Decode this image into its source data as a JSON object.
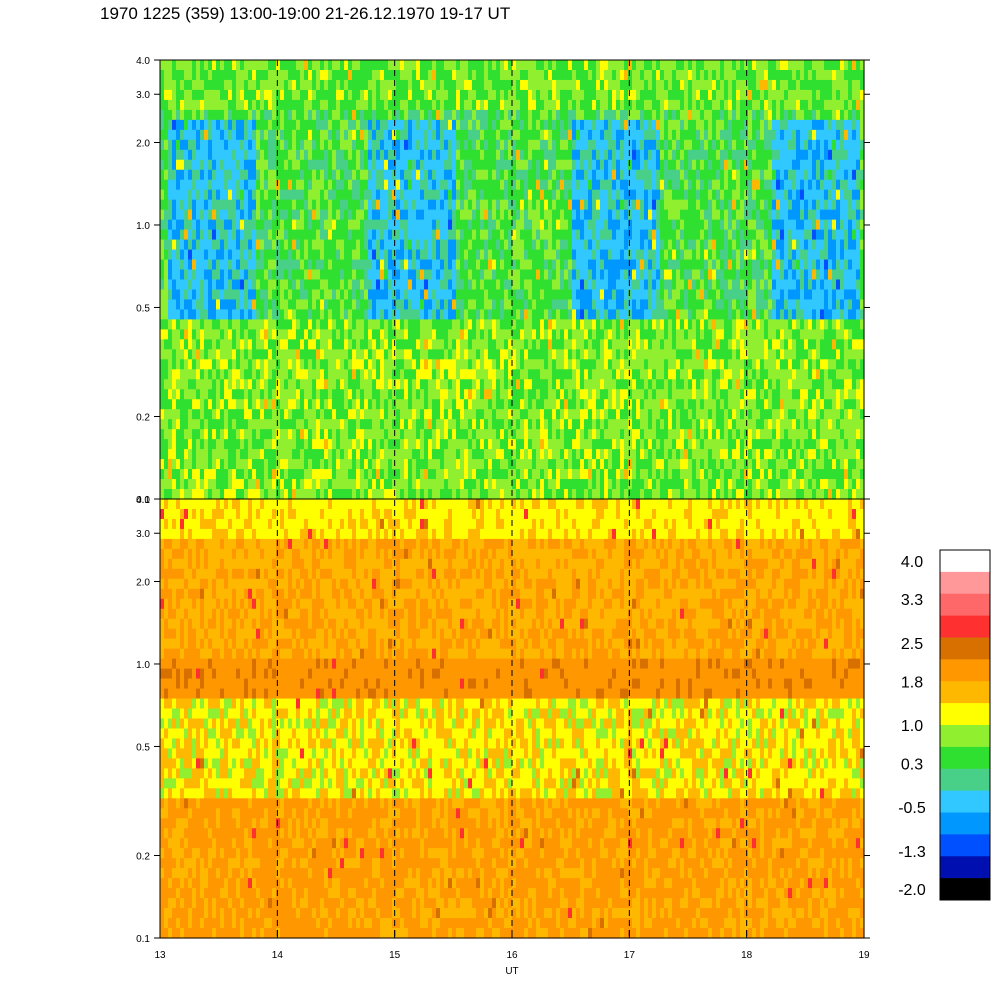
{
  "title": "1970 1225 (359) 13:00-19:00 21-26.12.1970  19-17 UT",
  "colors": {
    "palette": [
      "#000000",
      "#0010b0",
      "#0050ff",
      "#0098ff",
      "#30c8ff",
      "#48d088",
      "#30e030",
      "#90f030",
      "#ffff00",
      "#ffb800",
      "#ff9800",
      "#d87000",
      "#ff3030",
      "#ff6868",
      "#ff9898",
      "#ffffff"
    ],
    "dashed_lines": "#000000"
  },
  "chart_data": {
    "type": "heatmap",
    "panels": [
      {
        "name": "",
        "y_scale": "log",
        "ylim": [
          0.1,
          4.0
        ],
        "ytick_labels": [
          "0.1",
          "0.2",
          "0.5",
          "1.0",
          "2.0",
          "3.0",
          "4.0"
        ],
        "ytick_values": [
          0.1,
          0.2,
          0.5,
          1.0,
          2.0,
          3.0,
          4.0
        ],
        "dominant_levels": [
          "0.3",
          "-0.5"
        ]
      },
      {
        "name": "",
        "y_scale": "log",
        "ylim": [
          0.1,
          4.0
        ],
        "ytick_labels": [
          "0.1",
          "0.2",
          "0.5",
          "1.0",
          "2.0",
          "3.0",
          "4.0"
        ],
        "ytick_values": [
          0.1,
          0.2,
          0.5,
          1.0,
          2.0,
          3.0,
          4.0
        ],
        "dominant_levels": [
          "1.8",
          "1.0"
        ]
      }
    ],
    "x": {
      "label": "UT",
      "xlim": [
        13,
        19
      ],
      "tick_labels": [
        "13",
        "14",
        "15",
        "16",
        "17",
        "18",
        "19"
      ],
      "tick_values": [
        13,
        14,
        15,
        16,
        17,
        18,
        19
      ],
      "dashed_at": [
        14,
        15,
        16,
        17,
        18
      ]
    },
    "colorbar": {
      "labels": [
        "4.0",
        "3.3",
        "2.5",
        "1.8",
        "1.0",
        "0.3",
        "-0.5",
        "-1.3",
        "-2.0"
      ],
      "values": [
        4.0,
        3.3,
        2.5,
        1.8,
        1.0,
        0.3,
        -0.5,
        -1.3,
        -2.0
      ],
      "levels": 16
    }
  }
}
